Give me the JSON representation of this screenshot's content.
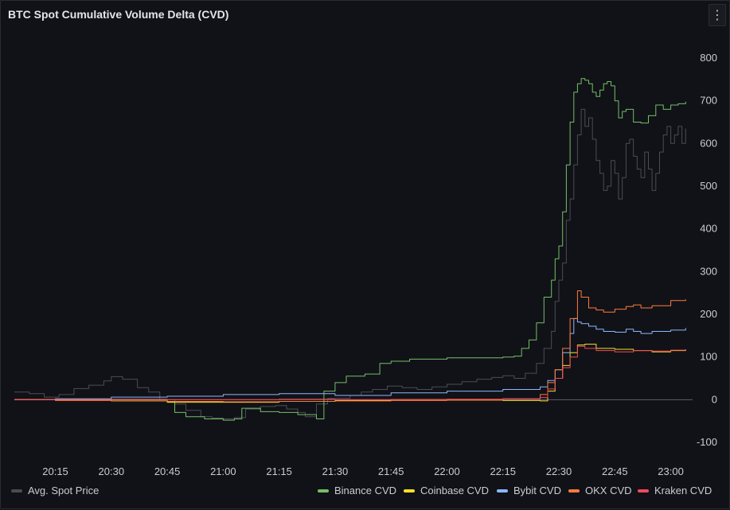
{
  "panel": {
    "title": "BTC Spot Cumulative Volume Delta (CVD)",
    "menu_icon": "vertical-ellipsis-icon"
  },
  "chart_data": {
    "type": "line",
    "title": "BTC Spot Cumulative Volume Delta (CVD)",
    "xlabel": "",
    "ylabel": "",
    "x_ticks": [
      "20:15",
      "20:30",
      "20:45",
      "21:00",
      "21:15",
      "21:30",
      "21:45",
      "22:00",
      "22:15",
      "22:30",
      "22:45",
      "23:00"
    ],
    "y_ticks": [
      800,
      700,
      600,
      500,
      400,
      300,
      200,
      100,
      0,
      -100
    ],
    "ylim": [
      -100,
      800
    ],
    "xlim": [
      "20:04",
      "23:05"
    ],
    "grid": false,
    "legend_position": "bottom",
    "series": [
      {
        "name": "Avg. Spot Price",
        "color": "#4a4d55",
        "points": [
          [
            "20:04",
            18
          ],
          [
            "20:08",
            14
          ],
          [
            "20:12",
            6
          ],
          [
            "20:16",
            12
          ],
          [
            "20:20",
            26
          ],
          [
            "20:24",
            34
          ],
          [
            "20:28",
            44
          ],
          [
            "20:30",
            54
          ],
          [
            "20:33",
            48
          ],
          [
            "20:37",
            28
          ],
          [
            "20:40",
            18
          ],
          [
            "20:43",
            0
          ],
          [
            "20:47",
            -10
          ],
          [
            "20:50",
            -25
          ],
          [
            "20:54",
            -40
          ],
          [
            "20:57",
            -43
          ],
          [
            "21:00",
            -45
          ],
          [
            "21:03",
            -42
          ],
          [
            "21:06",
            -22
          ],
          [
            "21:10",
            -16
          ],
          [
            "21:14",
            -14
          ],
          [
            "21:17",
            -22
          ],
          [
            "21:20",
            -30
          ],
          [
            "21:22",
            -40
          ],
          [
            "21:25",
            -10
          ],
          [
            "21:28",
            3
          ],
          [
            "21:31",
            3
          ],
          [
            "21:34",
            10
          ],
          [
            "21:37",
            18
          ],
          [
            "21:40",
            24
          ],
          [
            "21:44",
            32
          ],
          [
            "21:48",
            28
          ],
          [
            "21:52",
            24
          ],
          [
            "21:56",
            30
          ],
          [
            "22:00",
            36
          ],
          [
            "22:04",
            42
          ],
          [
            "22:08",
            48
          ],
          [
            "22:12",
            52
          ],
          [
            "22:15",
            56
          ],
          [
            "22:18",
            50
          ],
          [
            "22:21",
            62
          ],
          [
            "22:24",
            85
          ],
          [
            "22:26",
            120
          ],
          [
            "22:28",
            160
          ],
          [
            "22:29",
            230
          ],
          [
            "22:30",
            280
          ],
          [
            "22:31",
            320
          ],
          [
            "22:32",
            420
          ],
          [
            "22:33",
            470
          ],
          [
            "22:34",
            550
          ],
          [
            "22:35",
            620
          ],
          [
            "22:36",
            680
          ],
          [
            "22:37",
            640
          ],
          [
            "22:38",
            660
          ],
          [
            "22:39",
            610
          ],
          [
            "22:40",
            560
          ],
          [
            "22:41",
            530
          ],
          [
            "22:42",
            490
          ],
          [
            "22:43",
            500
          ],
          [
            "22:44",
            560
          ],
          [
            "22:45",
            530
          ],
          [
            "22:46",
            470
          ],
          [
            "22:47",
            520
          ],
          [
            "22:48",
            600
          ],
          [
            "22:49",
            610
          ],
          [
            "22:50",
            570
          ],
          [
            "22:51",
            540
          ],
          [
            "22:52",
            520
          ],
          [
            "22:53",
            580
          ],
          [
            "22:54",
            540
          ],
          [
            "22:55",
            490
          ],
          [
            "22:56",
            530
          ],
          [
            "22:57",
            580
          ],
          [
            "22:58",
            620
          ],
          [
            "22:59",
            640
          ],
          [
            "23:00",
            600
          ],
          [
            "23:01",
            620
          ],
          [
            "23:02",
            640
          ],
          [
            "23:03",
            600
          ],
          [
            "23:04",
            635
          ]
        ]
      },
      {
        "name": "Binance CVD",
        "color": "#73bf69",
        "points": [
          [
            "20:04",
            0
          ],
          [
            "20:30",
            0
          ],
          [
            "20:45",
            -5
          ],
          [
            "20:47",
            -30
          ],
          [
            "20:50",
            -40
          ],
          [
            "20:55",
            -45
          ],
          [
            "21:00",
            -48
          ],
          [
            "21:03",
            -45
          ],
          [
            "21:05",
            -20
          ],
          [
            "21:10",
            -28
          ],
          [
            "21:15",
            -30
          ],
          [
            "21:20",
            -35
          ],
          [
            "21:25",
            -45
          ],
          [
            "21:27",
            20
          ],
          [
            "21:30",
            40
          ],
          [
            "21:33",
            55
          ],
          [
            "21:38",
            60
          ],
          [
            "21:42",
            85
          ],
          [
            "21:45",
            90
          ],
          [
            "21:50",
            95
          ],
          [
            "22:00",
            98
          ],
          [
            "22:15",
            100
          ],
          [
            "22:18",
            102
          ],
          [
            "22:20",
            120
          ],
          [
            "22:22",
            140
          ],
          [
            "22:24",
            180
          ],
          [
            "22:26",
            240
          ],
          [
            "22:28",
            280
          ],
          [
            "22:29",
            330
          ],
          [
            "22:30",
            360
          ],
          [
            "22:31",
            440
          ],
          [
            "22:32",
            550
          ],
          [
            "22:33",
            650
          ],
          [
            "22:34",
            720
          ],
          [
            "22:35",
            740
          ],
          [
            "22:36",
            752
          ],
          [
            "22:37",
            748
          ],
          [
            "22:38",
            740
          ],
          [
            "22:39",
            720
          ],
          [
            "22:40",
            710
          ],
          [
            "22:41",
            725
          ],
          [
            "22:42",
            740
          ],
          [
            "22:43",
            745
          ],
          [
            "22:44",
            735
          ],
          [
            "22:45",
            700
          ],
          [
            "22:46",
            660
          ],
          [
            "22:47",
            675
          ],
          [
            "22:48",
            680
          ],
          [
            "22:50",
            650
          ],
          [
            "22:52",
            648
          ],
          [
            "22:54",
            665
          ],
          [
            "22:56",
            690
          ],
          [
            "22:58",
            680
          ],
          [
            "23:00",
            690
          ],
          [
            "23:02",
            693
          ],
          [
            "23:04",
            698
          ]
        ]
      },
      {
        "name": "Coinbase CVD",
        "color": "#fade2a",
        "points": [
          [
            "20:04",
            0
          ],
          [
            "20:30",
            -3
          ],
          [
            "20:45",
            -6
          ],
          [
            "21:00",
            -6
          ],
          [
            "21:15",
            -4
          ],
          [
            "21:30",
            -2
          ],
          [
            "21:45",
            0
          ],
          [
            "22:00",
            -1
          ],
          [
            "22:15",
            -2
          ],
          [
            "22:25",
            -3
          ],
          [
            "22:27",
            20
          ],
          [
            "22:29",
            50
          ],
          [
            "22:31",
            80
          ],
          [
            "22:33",
            110
          ],
          [
            "22:35",
            128
          ],
          [
            "22:37",
            130
          ],
          [
            "22:40",
            120
          ],
          [
            "22:45",
            118
          ],
          [
            "22:50",
            115
          ],
          [
            "22:55",
            112
          ],
          [
            "23:00",
            115
          ],
          [
            "23:04",
            118
          ]
        ]
      },
      {
        "name": "Bybit CVD",
        "color": "#8ab8ff",
        "points": [
          [
            "20:04",
            0
          ],
          [
            "20:15",
            2
          ],
          [
            "20:30",
            6
          ],
          [
            "20:45",
            8
          ],
          [
            "21:00",
            12
          ],
          [
            "21:15",
            14
          ],
          [
            "21:30",
            10
          ],
          [
            "21:45",
            16
          ],
          [
            "22:00",
            20
          ],
          [
            "22:15",
            24
          ],
          [
            "22:25",
            30
          ],
          [
            "22:27",
            45
          ],
          [
            "22:29",
            70
          ],
          [
            "22:31",
            110
          ],
          [
            "22:33",
            155
          ],
          [
            "22:34",
            190
          ],
          [
            "22:35",
            182
          ],
          [
            "22:36",
            178
          ],
          [
            "22:38",
            172
          ],
          [
            "22:40",
            165
          ],
          [
            "22:42",
            160
          ],
          [
            "22:45",
            158
          ],
          [
            "22:48",
            165
          ],
          [
            "22:50",
            160
          ],
          [
            "22:52",
            155
          ],
          [
            "22:55",
            160
          ],
          [
            "23:00",
            163
          ],
          [
            "23:04",
            168
          ]
        ]
      },
      {
        "name": "OKX CVD",
        "color": "#ff7a3d",
        "points": [
          [
            "20:04",
            0
          ],
          [
            "20:15",
            -2
          ],
          [
            "20:30",
            -3
          ],
          [
            "20:45",
            -4
          ],
          [
            "21:00",
            -5
          ],
          [
            "21:15",
            -4
          ],
          [
            "21:30",
            -3
          ],
          [
            "21:45",
            -2
          ],
          [
            "22:00",
            -1
          ],
          [
            "22:15",
            2
          ],
          [
            "22:25",
            12
          ],
          [
            "22:27",
            40
          ],
          [
            "22:29",
            70
          ],
          [
            "22:31",
            120
          ],
          [
            "22:33",
            190
          ],
          [
            "22:35",
            255
          ],
          [
            "22:36",
            240
          ],
          [
            "22:38",
            215
          ],
          [
            "22:40",
            210
          ],
          [
            "22:42",
            205
          ],
          [
            "22:45",
            212
          ],
          [
            "22:48",
            218
          ],
          [
            "22:50",
            222
          ],
          [
            "22:52",
            215
          ],
          [
            "22:55",
            220
          ],
          [
            "23:00",
            232
          ],
          [
            "23:04",
            235
          ]
        ]
      },
      {
        "name": "Kraken CVD",
        "color": "#f2495c",
        "points": [
          [
            "20:04",
            0
          ],
          [
            "20:15",
            0
          ],
          [
            "20:30",
            1
          ],
          [
            "20:45",
            0
          ],
          [
            "21:00",
            0
          ],
          [
            "21:15",
            1
          ],
          [
            "21:30",
            0
          ],
          [
            "21:45",
            0
          ],
          [
            "22:00",
            1
          ],
          [
            "22:15",
            2
          ],
          [
            "22:25",
            5
          ],
          [
            "22:27",
            25
          ],
          [
            "22:29",
            50
          ],
          [
            "22:31",
            75
          ],
          [
            "22:33",
            100
          ],
          [
            "22:35",
            125
          ],
          [
            "22:37",
            120
          ],
          [
            "22:40",
            115
          ],
          [
            "22:45",
            112
          ],
          [
            "22:50",
            115
          ],
          [
            "22:55",
            114
          ],
          [
            "23:00",
            116
          ],
          [
            "23:04",
            118
          ]
        ]
      }
    ]
  }
}
